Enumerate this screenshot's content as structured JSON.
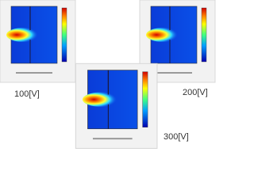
{
  "panels": [
    {
      "label": "100[V]"
    },
    {
      "label": "200[V]"
    },
    {
      "label": "300[V]"
    }
  ]
}
